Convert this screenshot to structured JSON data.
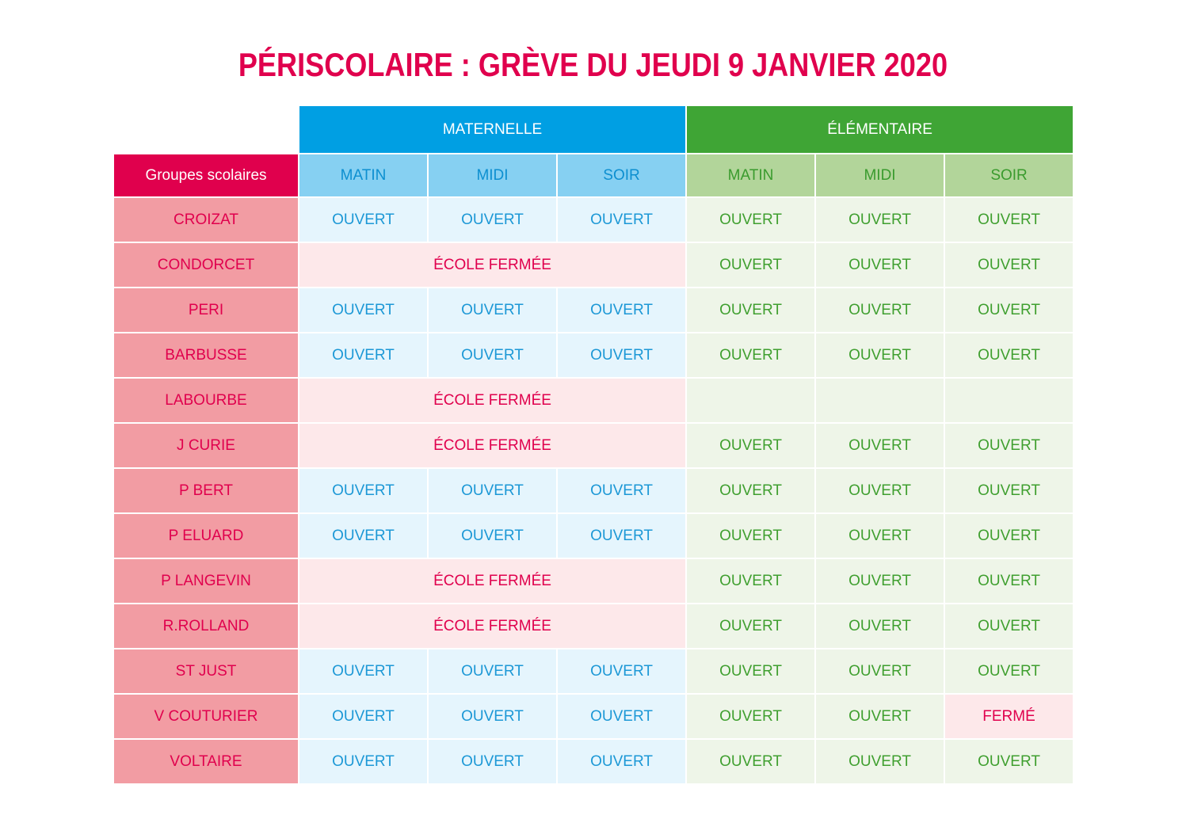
{
  "title": "PÉRISCOLAIRE : GRÈVE DU JEUDI 9 JANVIER 2020",
  "headers": {
    "maternelle": "MATERNELLE",
    "elementaire": "ÉLÉMENTAIRE",
    "groups": "Groupes scolaires",
    "periods": [
      "MATIN",
      "MIDI",
      "SOIR"
    ]
  },
  "colors": {
    "title": "#e0004d",
    "maternelle": "#009fe3",
    "elementaire": "#3fa535",
    "closed": "#e0004d"
  },
  "rows": [
    {
      "school": "CROIZAT",
      "maternelle_closed": false,
      "maternelle": [
        "OUVERT",
        "OUVERT",
        "OUVERT"
      ],
      "elementaire": [
        "OUVERT",
        "OUVERT",
        "OUVERT"
      ]
    },
    {
      "school": "CONDORCET",
      "maternelle_closed": true,
      "maternelle_label": "ÉCOLE FERMÉE",
      "elementaire": [
        "OUVERT",
        "OUVERT",
        "OUVERT"
      ]
    },
    {
      "school": "PERI",
      "maternelle_closed": false,
      "maternelle": [
        "OUVERT",
        "OUVERT",
        "OUVERT"
      ],
      "elementaire": [
        "OUVERT",
        "OUVERT",
        "OUVERT"
      ]
    },
    {
      "school": "BARBUSSE",
      "maternelle_closed": false,
      "maternelle": [
        "OUVERT",
        "OUVERT",
        "OUVERT"
      ],
      "elementaire": [
        "OUVERT",
        "OUVERT",
        "OUVERT"
      ]
    },
    {
      "school": "LABOURBE",
      "maternelle_closed": true,
      "maternelle_label": "ÉCOLE FERMÉE",
      "elementaire": [
        "",
        "",
        ""
      ]
    },
    {
      "school": "J CURIE",
      "maternelle_closed": true,
      "maternelle_label": "ÉCOLE FERMÉE",
      "elementaire": [
        "OUVERT",
        "OUVERT",
        "OUVERT"
      ]
    },
    {
      "school": "P BERT",
      "maternelle_closed": false,
      "maternelle": [
        "OUVERT",
        "OUVERT",
        "OUVERT"
      ],
      "elementaire": [
        "OUVERT",
        "OUVERT",
        "OUVERT"
      ]
    },
    {
      "school": "P ELUARD",
      "maternelle_closed": false,
      "maternelle": [
        "OUVERT",
        "OUVERT",
        "OUVERT"
      ],
      "elementaire": [
        "OUVERT",
        "OUVERT",
        "OUVERT"
      ]
    },
    {
      "school": "P LANGEVIN",
      "maternelle_closed": true,
      "maternelle_label": "ÉCOLE FERMÉE",
      "elementaire": [
        "OUVERT",
        "OUVERT",
        "OUVERT"
      ]
    },
    {
      "school": "R.ROLLAND",
      "maternelle_closed": true,
      "maternelle_label": "ÉCOLE FERMÉE",
      "elementaire": [
        "OUVERT",
        "OUVERT",
        "OUVERT"
      ]
    },
    {
      "school": "ST JUST",
      "maternelle_closed": false,
      "maternelle": [
        "OUVERT",
        "OUVERT",
        "OUVERT"
      ],
      "elementaire": [
        "OUVERT",
        "OUVERT",
        "OUVERT"
      ]
    },
    {
      "school": "V COUTURIER",
      "maternelle_closed": false,
      "maternelle": [
        "OUVERT",
        "OUVERT",
        "OUVERT"
      ],
      "elementaire": [
        "OUVERT",
        "OUVERT",
        "FERMÉ"
      ]
    },
    {
      "school": "VOLTAIRE",
      "maternelle_closed": false,
      "maternelle": [
        "OUVERT",
        "OUVERT",
        "OUVERT"
      ],
      "elementaire": [
        "OUVERT",
        "OUVERT",
        "OUVERT"
      ]
    }
  ]
}
